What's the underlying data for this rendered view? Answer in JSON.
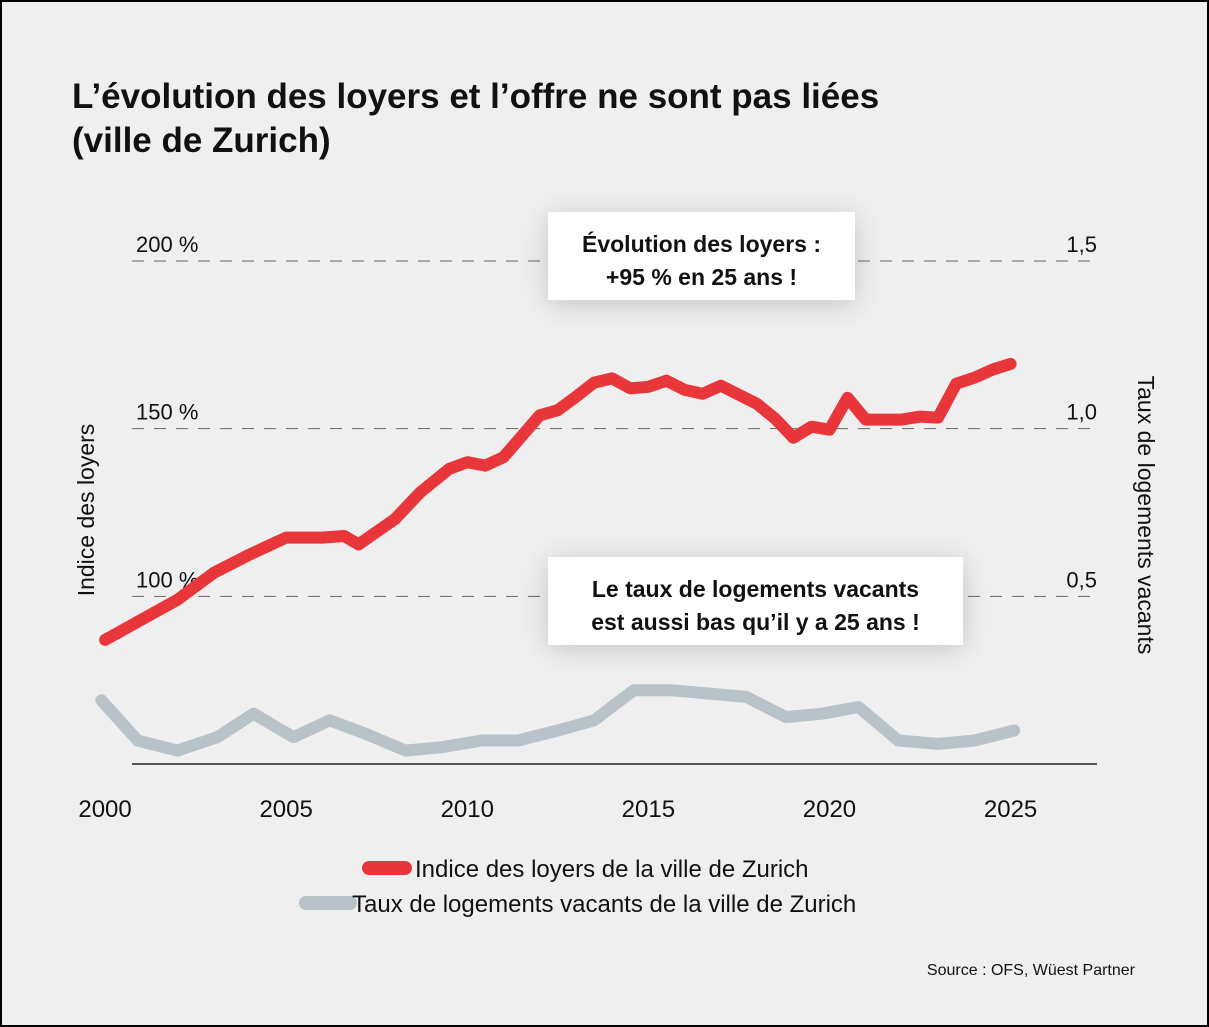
{
  "chart_data": {
    "type": "line",
    "title": [
      "L’évolution des loyers et l’offre ne sont pas liées",
      "(ville de Zurich)"
    ],
    "ylabel": "Indice des loyers",
    "y2label": "Taux de logements vacants",
    "xlim": [
      1997.5,
      2027.8
    ],
    "xticks": [
      2000,
      2005,
      2010,
      2015,
      2020,
      2025
    ],
    "ylim": [
      50,
      200
    ],
    "yticks": [
      {
        "value": 100,
        "label": "100 %"
      },
      {
        "value": 150,
        "label": "150 %"
      },
      {
        "value": 200,
        "label": "200 %"
      }
    ],
    "y2lim": [
      0,
      1.5
    ],
    "y2ticks": [
      {
        "value": 0.5,
        "label": "0,5"
      },
      {
        "value": 1.0,
        "label": "1,0"
      },
      {
        "value": 1.5,
        "label": "1,5"
      }
    ],
    "grid": true,
    "series": [
      {
        "name": "Indice des loyers de la ville de Zurich",
        "color": "#e8363a",
        "axis": "y",
        "x": [
          2000,
          2001,
          2002,
          2003,
          2004,
          2005,
          2006,
          2006.6,
          2007,
          2008,
          2008.7,
          2009.5,
          2010,
          2010.5,
          2011,
          2012,
          2012.5,
          2013,
          2013.5,
          2014,
          2014.5,
          2015,
          2015.5,
          2016,
          2016.5,
          2017,
          2018,
          2018.5,
          2019,
          2019.5,
          2020,
          2020.5,
          2021,
          2022,
          2022.5,
          2023,
          2023.5,
          2024,
          2024.5,
          2025
        ],
        "values": [
          87,
          93,
          99,
          107,
          112.5,
          117.5,
          117.5,
          118,
          115.5,
          123,
          131,
          138,
          140,
          139,
          141.5,
          154,
          155.5,
          159.5,
          163.7,
          165,
          162,
          162.5,
          164.3,
          161.6,
          160.4,
          162.8,
          157.4,
          153,
          147.3,
          150.6,
          149.7,
          159.2,
          152.7,
          152.7,
          153.6,
          153.3,
          163.4,
          165.2,
          167.6,
          169.3
        ]
      },
      {
        "name": "Taux de logements vacants de la ville de Zurich",
        "color": "#b7c3c9",
        "axis": "y2",
        "x": [
          1999.9,
          2000.9,
          2002.0,
          2003.1,
          2004.1,
          2005.2,
          2006.2,
          2007.2,
          2008.3,
          2009.3,
          2010.4,
          2011.4,
          2012.5,
          2013.5,
          2014.6,
          2015.6,
          2016.7,
          2017.7,
          2018.8,
          2019.8,
          2020.8,
          2021.9,
          2023.0,
          2024.0,
          2025.1
        ],
        "values": [
          0.19,
          0.07,
          0.04,
          0.08,
          0.15,
          0.08,
          0.13,
          0.09,
          0.04,
          0.05,
          0.07,
          0.07,
          0.1,
          0.13,
          0.22,
          0.22,
          0.21,
          0.2,
          0.14,
          0.15,
          0.17,
          0.07,
          0.06,
          0.07,
          0.1
        ]
      }
    ],
    "annotations": [
      {
        "lines": [
          "Évolution des loyers :",
          "+95 % en 25 ans !"
        ],
        "color": "#e8363a"
      },
      {
        "lines": [
          "Le taux de logements vacants",
          "est aussi bas qu’il y a 25 ans !"
        ],
        "color": "#a9b6bd"
      }
    ],
    "source": "Source : OFS, Wüest Partner"
  }
}
